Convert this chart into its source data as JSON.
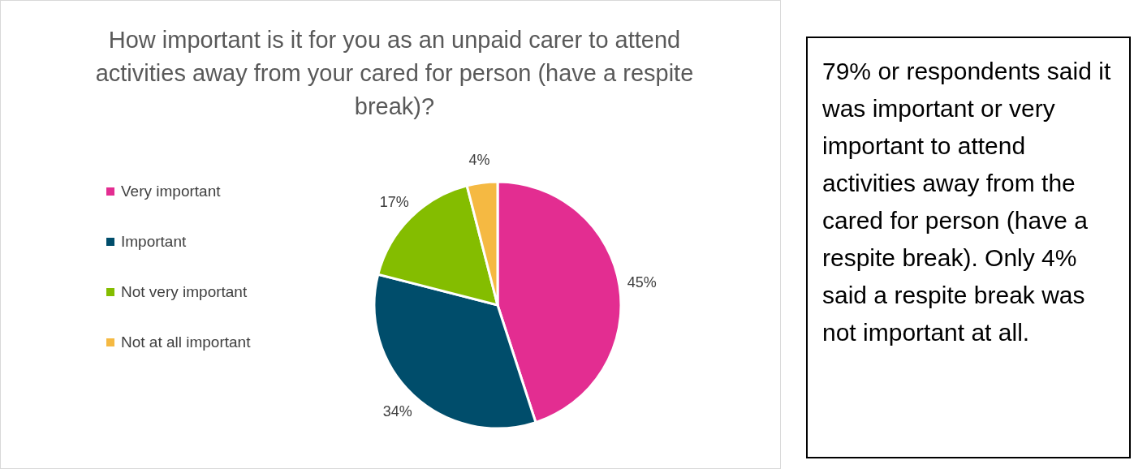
{
  "chart_data": {
    "type": "pie",
    "title": "How important is it for you as an unpaid carer to attend activities away from your cared for person (have a respite break)?",
    "categories": [
      "Very important",
      "Important",
      "Not very important",
      "Not at all important"
    ],
    "values": [
      45,
      34,
      17,
      4
    ],
    "colors": [
      "#e32d91",
      "#004d6b",
      "#84bd00",
      "#f5b942"
    ],
    "value_labels": [
      "45%",
      "34%",
      "17%",
      "4%"
    ],
    "legend": "left",
    "annotations": [
      "79% or respondents said it was important or very important to attend activities away from the cared for person (have a respite break). Only 4% said a respite break was not important at all."
    ]
  }
}
